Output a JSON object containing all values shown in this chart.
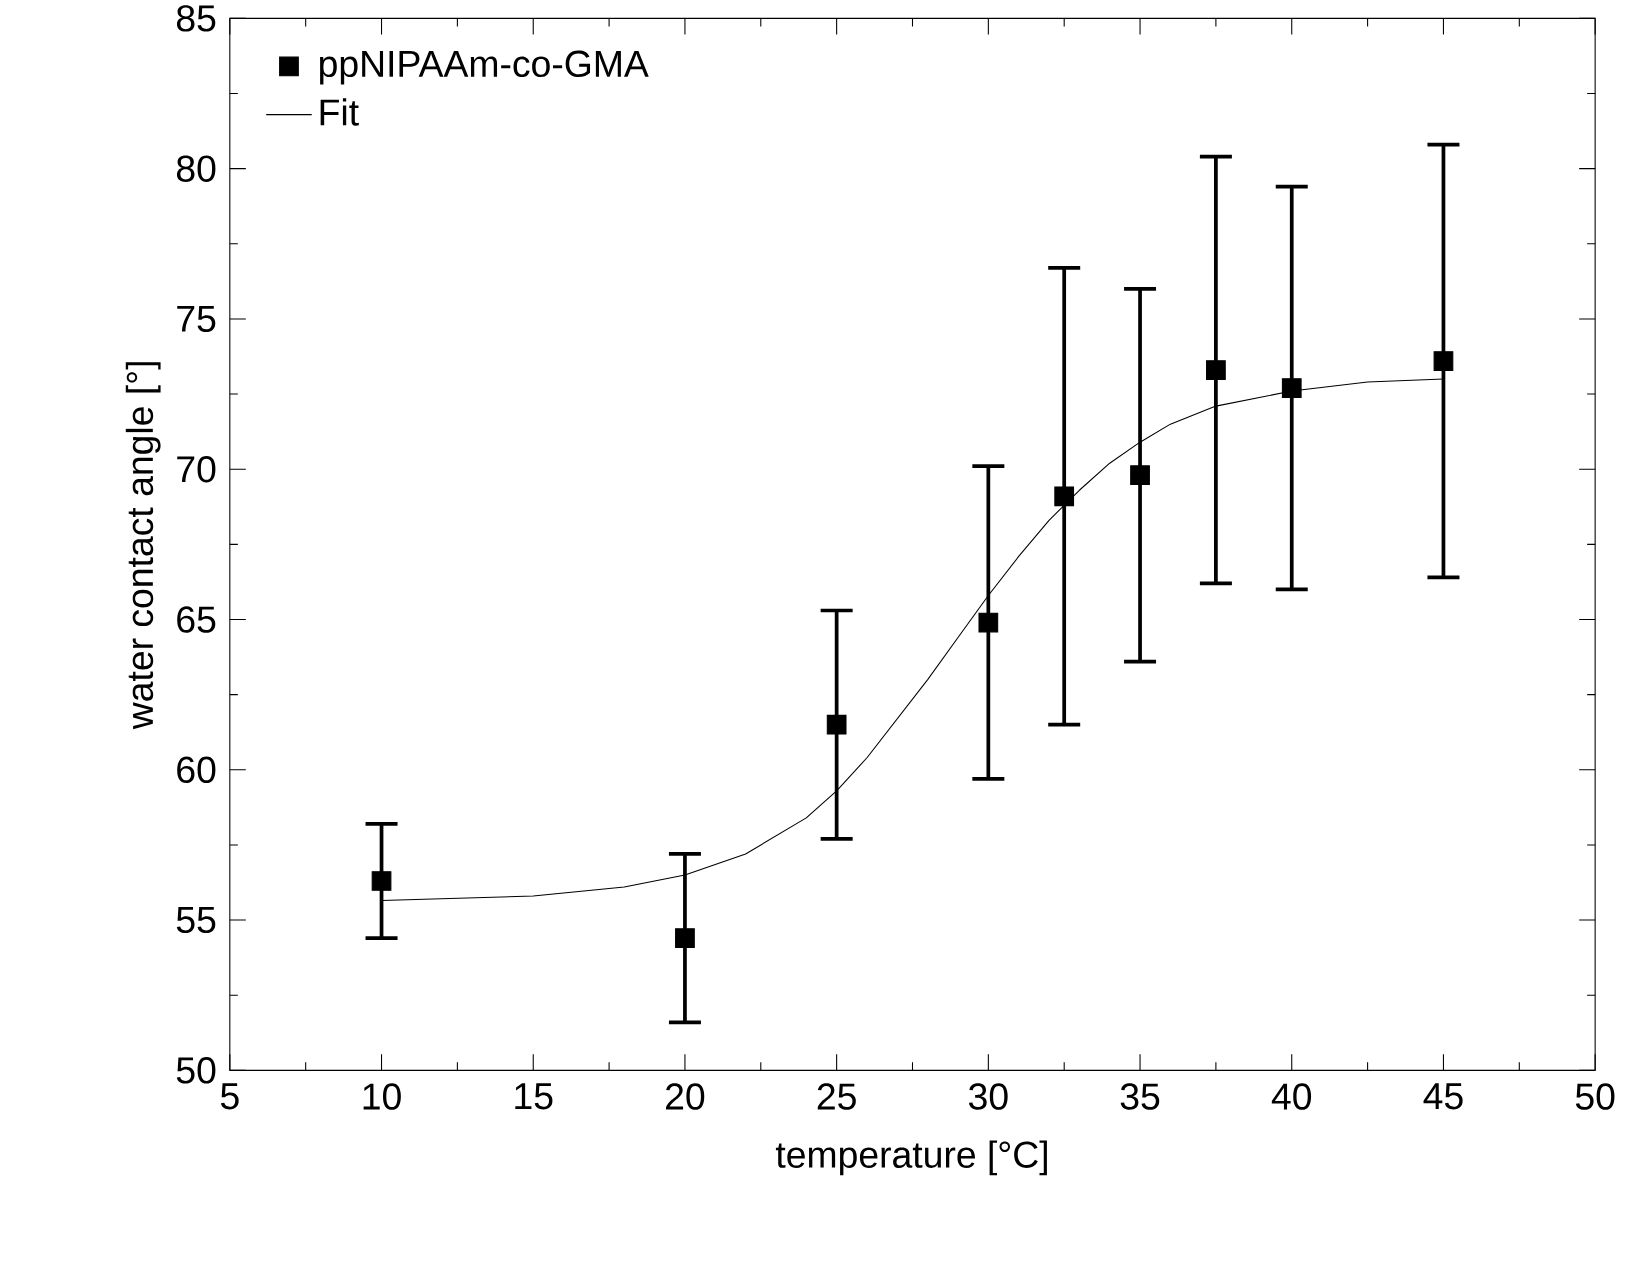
{
  "chart_data": {
    "type": "scatter",
    "xlabel": "temperature [°C]",
    "ylabel": "water contact angle [°]",
    "x": [
      10,
      20,
      25,
      30,
      32.5,
      35,
      37.5,
      40,
      45
    ],
    "series": [
      {
        "name": "ppNIPAAm-co-GMA",
        "color": "#000000",
        "marker": "square",
        "values": [
          56.3,
          54.4,
          61.5,
          64.9,
          69.1,
          69.8,
          73.3,
          72.7,
          73.6
        ],
        "errors": [
          1.9,
          2.8,
          3.8,
          5.2,
          7.6,
          6.2,
          7.1,
          6.7,
          7.2
        ]
      },
      {
        "name": "Fit",
        "type": "line",
        "color": "#000000",
        "marker": "none",
        "line_style": "solid",
        "x": [
          10,
          15,
          18,
          20,
          22,
          24,
          25,
          26,
          27,
          28,
          29,
          30,
          31,
          32,
          33,
          34,
          35,
          36,
          37.5,
          40,
          42.5,
          45
        ],
        "values": [
          55.65,
          55.8,
          56.1,
          56.5,
          57.2,
          58.4,
          59.3,
          60.4,
          61.7,
          63.0,
          64.4,
          65.8,
          67.1,
          68.3,
          69.3,
          70.2,
          70.9,
          71.5,
          72.1,
          72.6,
          72.9,
          73.0
        ]
      }
    ],
    "xlim": [
      5,
      50
    ],
    "xticks": [
      5,
      10,
      15,
      20,
      25,
      30,
      35,
      40,
      45,
      50
    ],
    "ylim": [
      50,
      85
    ],
    "yticks": [
      50,
      55,
      60,
      65,
      70,
      75,
      80,
      85
    ],
    "grid": false,
    "legend": "top left"
  }
}
